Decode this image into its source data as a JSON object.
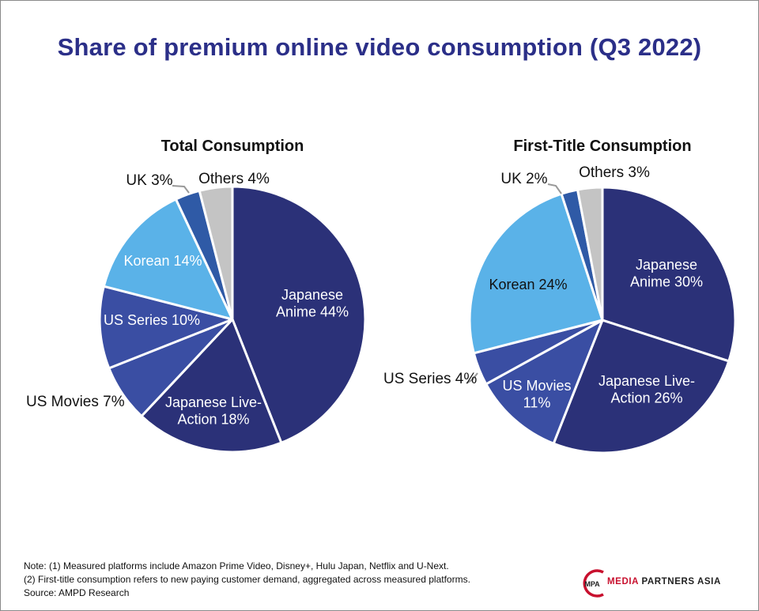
{
  "chart_data": [
    {
      "type": "pie",
      "title": "Total Consumption",
      "slices": [
        {
          "name": "Japanese Anime",
          "value": 44,
          "label": [
            "Japanese",
            "Anime 44%"
          ],
          "color": "#2b3178"
        },
        {
          "name": "Japanese Live-Action",
          "value": 18,
          "label": [
            "Japanese Live-",
            "Action 18%"
          ],
          "color": "#2b3178"
        },
        {
          "name": "US Movies",
          "value": 7,
          "label": [
            "US Movies 7%"
          ],
          "color": "#3a4ea3"
        },
        {
          "name": "US Series",
          "value": 10,
          "label": [
            "US Series 10%"
          ],
          "color": "#3a4ea3"
        },
        {
          "name": "Korean",
          "value": 14,
          "label": [
            "Korean 14%"
          ],
          "color": "#5ab2e8"
        },
        {
          "name": "UK",
          "value": 3,
          "label": [
            "UK 3%"
          ],
          "color": "#2f5aa6"
        },
        {
          "name": "Others",
          "value": 4,
          "label": [
            "Others 4%"
          ],
          "color": "#c4c4c4"
        }
      ]
    },
    {
      "type": "pie",
      "title": "First-Title Consumption",
      "slices": [
        {
          "name": "Japanese Anime",
          "value": 30,
          "label": [
            "Japanese",
            "Anime 30%"
          ],
          "color": "#2b3178"
        },
        {
          "name": "Japanese Live-Action",
          "value": 26,
          "label": [
            "Japanese Live-",
            "Action 26%"
          ],
          "color": "#2b3178"
        },
        {
          "name": "US Movies",
          "value": 11,
          "label": [
            "US Movies",
            "11%"
          ],
          "color": "#3a4ea3"
        },
        {
          "name": "US Series",
          "value": 4,
          "label": [
            "US Series 4%"
          ],
          "color": "#3a4ea3"
        },
        {
          "name": "Korean",
          "value": 24,
          "label": [
            "Korean 24%"
          ],
          "color": "#5ab2e8"
        },
        {
          "name": "UK",
          "value": 2,
          "label": [
            "UK 2%"
          ],
          "color": "#2f5aa6"
        },
        {
          "name": "Others",
          "value": 3,
          "label": [
            "Others 3%"
          ],
          "color": "#c4c4c4"
        }
      ]
    }
  ],
  "header": {
    "title": "Share of premium online video consumption (Q3 2022)"
  },
  "notes": [
    "Note: (1) Measured platforms include Amazon Prime Video, Disney+, Hulu Japan, Netflix and U-Next.",
    "(2) First-title consumption refers to new paying customer demand, aggregated across measured platforms.",
    "Source: AMPD Research"
  ],
  "logo": {
    "mark": "MPA",
    "brand": "MEDIA",
    "rest": "PARTNERS ASIA",
    "mark_color": "#c8102e"
  }
}
